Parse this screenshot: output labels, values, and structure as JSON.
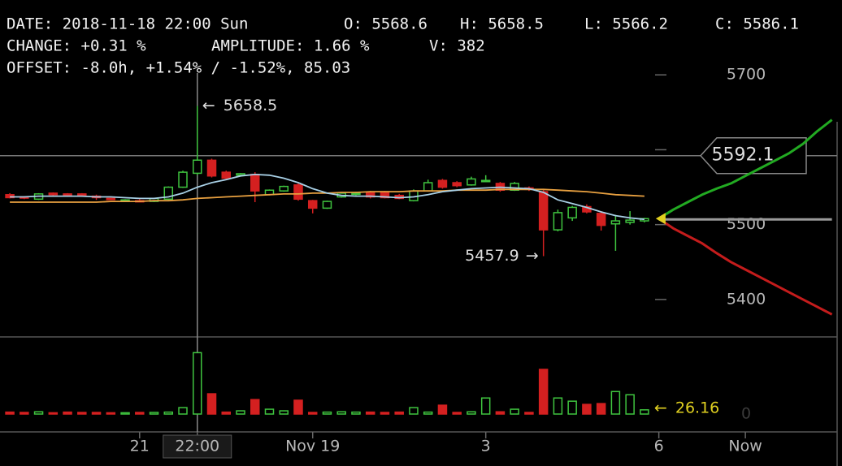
{
  "chart_data": {
    "type": "candlestick",
    "header": {
      "line1": [
        "DATE: 2018-11-18 22:00 Sun",
        "O: 5568.6",
        "H: 5658.5",
        "L: 5566.2",
        "C: 5586.1"
      ],
      "line2": [
        "CHANGE: +0.31 %",
        "AMPLITUDE: 1.66 %",
        "V: 382"
      ],
      "line3": [
        "OFFSET: -8.0h, +1.54% / -1.52%, 85.03"
      ]
    },
    "candles": {
      "open": [
        5540,
        5537,
        5534,
        5542,
        5541,
        5541,
        5538,
        5535,
        5532,
        5532,
        5531,
        5534,
        5550,
        5568.6,
        5586,
        5570,
        5566,
        5567,
        5540,
        5545,
        5553,
        5532,
        5522,
        5537,
        5541,
        5543,
        5544,
        5539,
        5532,
        5545,
        5559,
        5556,
        5553,
        5558,
        5555,
        5546,
        5549,
        5544,
        5493,
        5509,
        5524,
        5515,
        5501,
        5503,
        5505
      ],
      "high": [
        5542,
        5538,
        5542,
        5543,
        5542,
        5542,
        5540,
        5536,
        5534,
        5534,
        5536,
        5551,
        5572,
        5658.5,
        5588,
        5572,
        5569,
        5570,
        5547,
        5552,
        5555,
        5533,
        5532,
        5543,
        5544,
        5545,
        5545,
        5541,
        5547,
        5560,
        5561,
        5558,
        5564,
        5566,
        5557,
        5557,
        5551,
        5547,
        5520,
        5525,
        5527,
        5518,
        5513,
        5518,
        5509
      ],
      "low": [
        5535,
        5534,
        5533,
        5538,
        5537,
        5537,
        5533,
        5533,
        5530,
        5530,
        5530,
        5533,
        5549,
        5566.2,
        5563,
        5560,
        5565,
        5530,
        5539,
        5544,
        5532,
        5515,
        5521,
        5536,
        5539,
        5535,
        5535,
        5534,
        5531,
        5544,
        5548,
        5550,
        5552,
        5557,
        5544,
        5545,
        5545,
        5457.9,
        5491,
        5505,
        5515,
        5492,
        5465,
        5500,
        5503
      ],
      "close": [
        5536,
        5536,
        5541,
        5540,
        5538,
        5538,
        5536,
        5534,
        5533,
        5531,
        5535,
        5550,
        5570,
        5586.1,
        5565,
        5562,
        5568,
        5545,
        5546,
        5551,
        5534,
        5522,
        5531,
        5542,
        5542,
        5537,
        5536,
        5535,
        5545,
        5556,
        5550,
        5552,
        5561,
        5559,
        5546,
        5555,
        5547,
        5493,
        5516,
        5523,
        5517,
        5499,
        5505,
        5506,
        5508
      ],
      "up_color": "#3fc43f",
      "down_color": "#d42020"
    },
    "volumes": [
      12,
      10,
      14,
      8,
      12,
      10,
      10,
      8,
      8,
      10,
      10,
      12,
      40,
      382,
      126,
      12,
      20,
      90,
      30,
      20,
      86,
      10,
      12,
      14,
      12,
      12,
      10,
      12,
      40,
      12,
      55,
      10,
      14,
      100,
      14,
      30,
      10,
      278,
      100,
      80,
      60,
      65,
      140,
      120,
      26.16
    ],
    "ma_fast": {
      "color": "#a8d0e6",
      "values": [
        5537,
        5537,
        5538,
        5538,
        5538,
        5538,
        5537,
        5537,
        5536,
        5535,
        5535,
        5537,
        5542,
        5550,
        5556,
        5560,
        5565,
        5567,
        5566,
        5562,
        5556,
        5548,
        5542,
        5539,
        5538,
        5538,
        5537,
        5536,
        5537,
        5540,
        5544,
        5546,
        5548,
        5549,
        5550,
        5549,
        5548,
        5543,
        5533,
        5528,
        5523,
        5517,
        5512,
        5509,
        5507
      ]
    },
    "ma_slow": {
      "color": "#e8a040",
      "values": [
        5530,
        5530,
        5530,
        5530,
        5530,
        5530,
        5530,
        5531,
        5531,
        5531,
        5532,
        5532,
        5533,
        5535,
        5536,
        5537,
        5538,
        5539,
        5540,
        5541,
        5541,
        5542,
        5542,
        5543,
        5543,
        5544,
        5544,
        5544,
        5545,
        5545,
        5545,
        5546,
        5546,
        5546,
        5547,
        5547,
        5547,
        5547,
        5546,
        5545,
        5544,
        5542,
        5540,
        5539,
        5538
      ]
    },
    "projection": {
      "x": [
        45,
        46,
        47,
        48,
        49,
        50,
        51,
        52,
        53,
        54,
        55,
        56,
        57
      ],
      "series": [
        {
          "color": "#22aa22",
          "values": [
            5508,
            5520,
            5530,
            5540,
            5548,
            5555,
            5565,
            5575,
            5585,
            5595,
            5608,
            5625,
            5640
          ]
        },
        {
          "color": "#9a9a9a",
          "values": [
            5507,
            5507,
            5507,
            5507,
            5507,
            5507,
            5507,
            5507,
            5507,
            5507,
            5507,
            5507,
            5507
          ]
        },
        {
          "color": "#c41c1c",
          "values": [
            5508,
            5495,
            5485,
            5475,
            5462,
            5450,
            5440,
            5430,
            5420,
            5410,
            5400,
            5390,
            5380
          ]
        }
      ]
    },
    "price_line": 5592.1,
    "ylim": [
      5350,
      5800
    ],
    "yticks": [
      5400,
      5500,
      5600,
      5700
    ],
    "vlim": [
      0,
      480
    ],
    "vticks": [
      0
    ],
    "xlim": [
      -0.68,
      57.7
    ],
    "xticks": [
      {
        "value": 9,
        "label": "21"
      },
      {
        "value": 13,
        "label": "22:00"
      },
      {
        "value": 21,
        "label": "Nov 19"
      },
      {
        "value": 33,
        "label": "3"
      },
      {
        "value": 45,
        "label": "6"
      },
      {
        "value": 51,
        "label": "Now"
      }
    ],
    "crosshair_index": 13
  }
}
